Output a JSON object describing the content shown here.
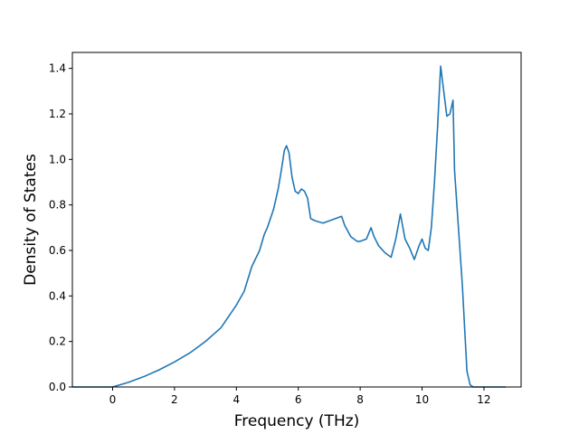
{
  "chart_data": {
    "type": "line",
    "title": "",
    "xlabel": "Frequency (THz)",
    "ylabel": "Density of States",
    "xlim": [
      -1.3,
      13.2
    ],
    "ylim": [
      0.0,
      1.47
    ],
    "xticks": [
      0,
      2,
      4,
      6,
      8,
      10,
      12
    ],
    "xtick_labels": [
      "0",
      "2",
      "4",
      "6",
      "8",
      "10",
      "12"
    ],
    "yticks": [
      0.0,
      0.2,
      0.4,
      0.6,
      0.8,
      1.0,
      1.2,
      1.4
    ],
    "ytick_labels": [
      "0.0",
      "0.2",
      "0.4",
      "0.6",
      "0.8",
      "1.0",
      "1.2",
      "1.4"
    ],
    "grid": false,
    "series": [
      {
        "color": "#1f77b4",
        "x": [
          -1.3,
          -1.0,
          -0.5,
          0.0,
          0.25,
          0.5,
          1.0,
          1.5,
          2.0,
          2.5,
          3.0,
          3.5,
          4.0,
          4.25,
          4.5,
          4.75,
          4.9,
          5.0,
          5.2,
          5.35,
          5.45,
          5.55,
          5.62,
          5.7,
          5.8,
          5.9,
          6.0,
          6.1,
          6.2,
          6.3,
          6.4,
          6.55,
          6.8,
          7.0,
          7.2,
          7.4,
          7.5,
          7.7,
          7.9,
          8.0,
          8.2,
          8.35,
          8.45,
          8.6,
          8.8,
          9.0,
          9.15,
          9.3,
          9.45,
          9.6,
          9.75,
          9.9,
          10.0,
          10.1,
          10.2,
          10.3,
          10.4,
          10.5,
          10.6,
          10.7,
          10.8,
          10.9,
          11.0,
          11.05,
          11.15,
          11.3,
          11.45,
          11.55,
          11.65,
          11.8,
          12.0,
          12.5,
          12.7
        ],
        "values": [
          0.0,
          0.0,
          0.0,
          0.0,
          0.01,
          0.02,
          0.045,
          0.075,
          0.11,
          0.15,
          0.2,
          0.26,
          0.36,
          0.42,
          0.53,
          0.6,
          0.67,
          0.7,
          0.78,
          0.87,
          0.95,
          1.04,
          1.06,
          1.03,
          0.92,
          0.86,
          0.85,
          0.87,
          0.86,
          0.83,
          0.74,
          0.73,
          0.72,
          0.73,
          0.74,
          0.75,
          0.71,
          0.66,
          0.64,
          0.64,
          0.65,
          0.7,
          0.66,
          0.62,
          0.59,
          0.57,
          0.65,
          0.76,
          0.65,
          0.61,
          0.56,
          0.62,
          0.65,
          0.61,
          0.6,
          0.7,
          0.9,
          1.14,
          1.41,
          1.3,
          1.19,
          1.2,
          1.26,
          0.95,
          0.75,
          0.45,
          0.07,
          0.01,
          0.0,
          0.0,
          0.0,
          0.0,
          0.0
        ]
      }
    ]
  }
}
